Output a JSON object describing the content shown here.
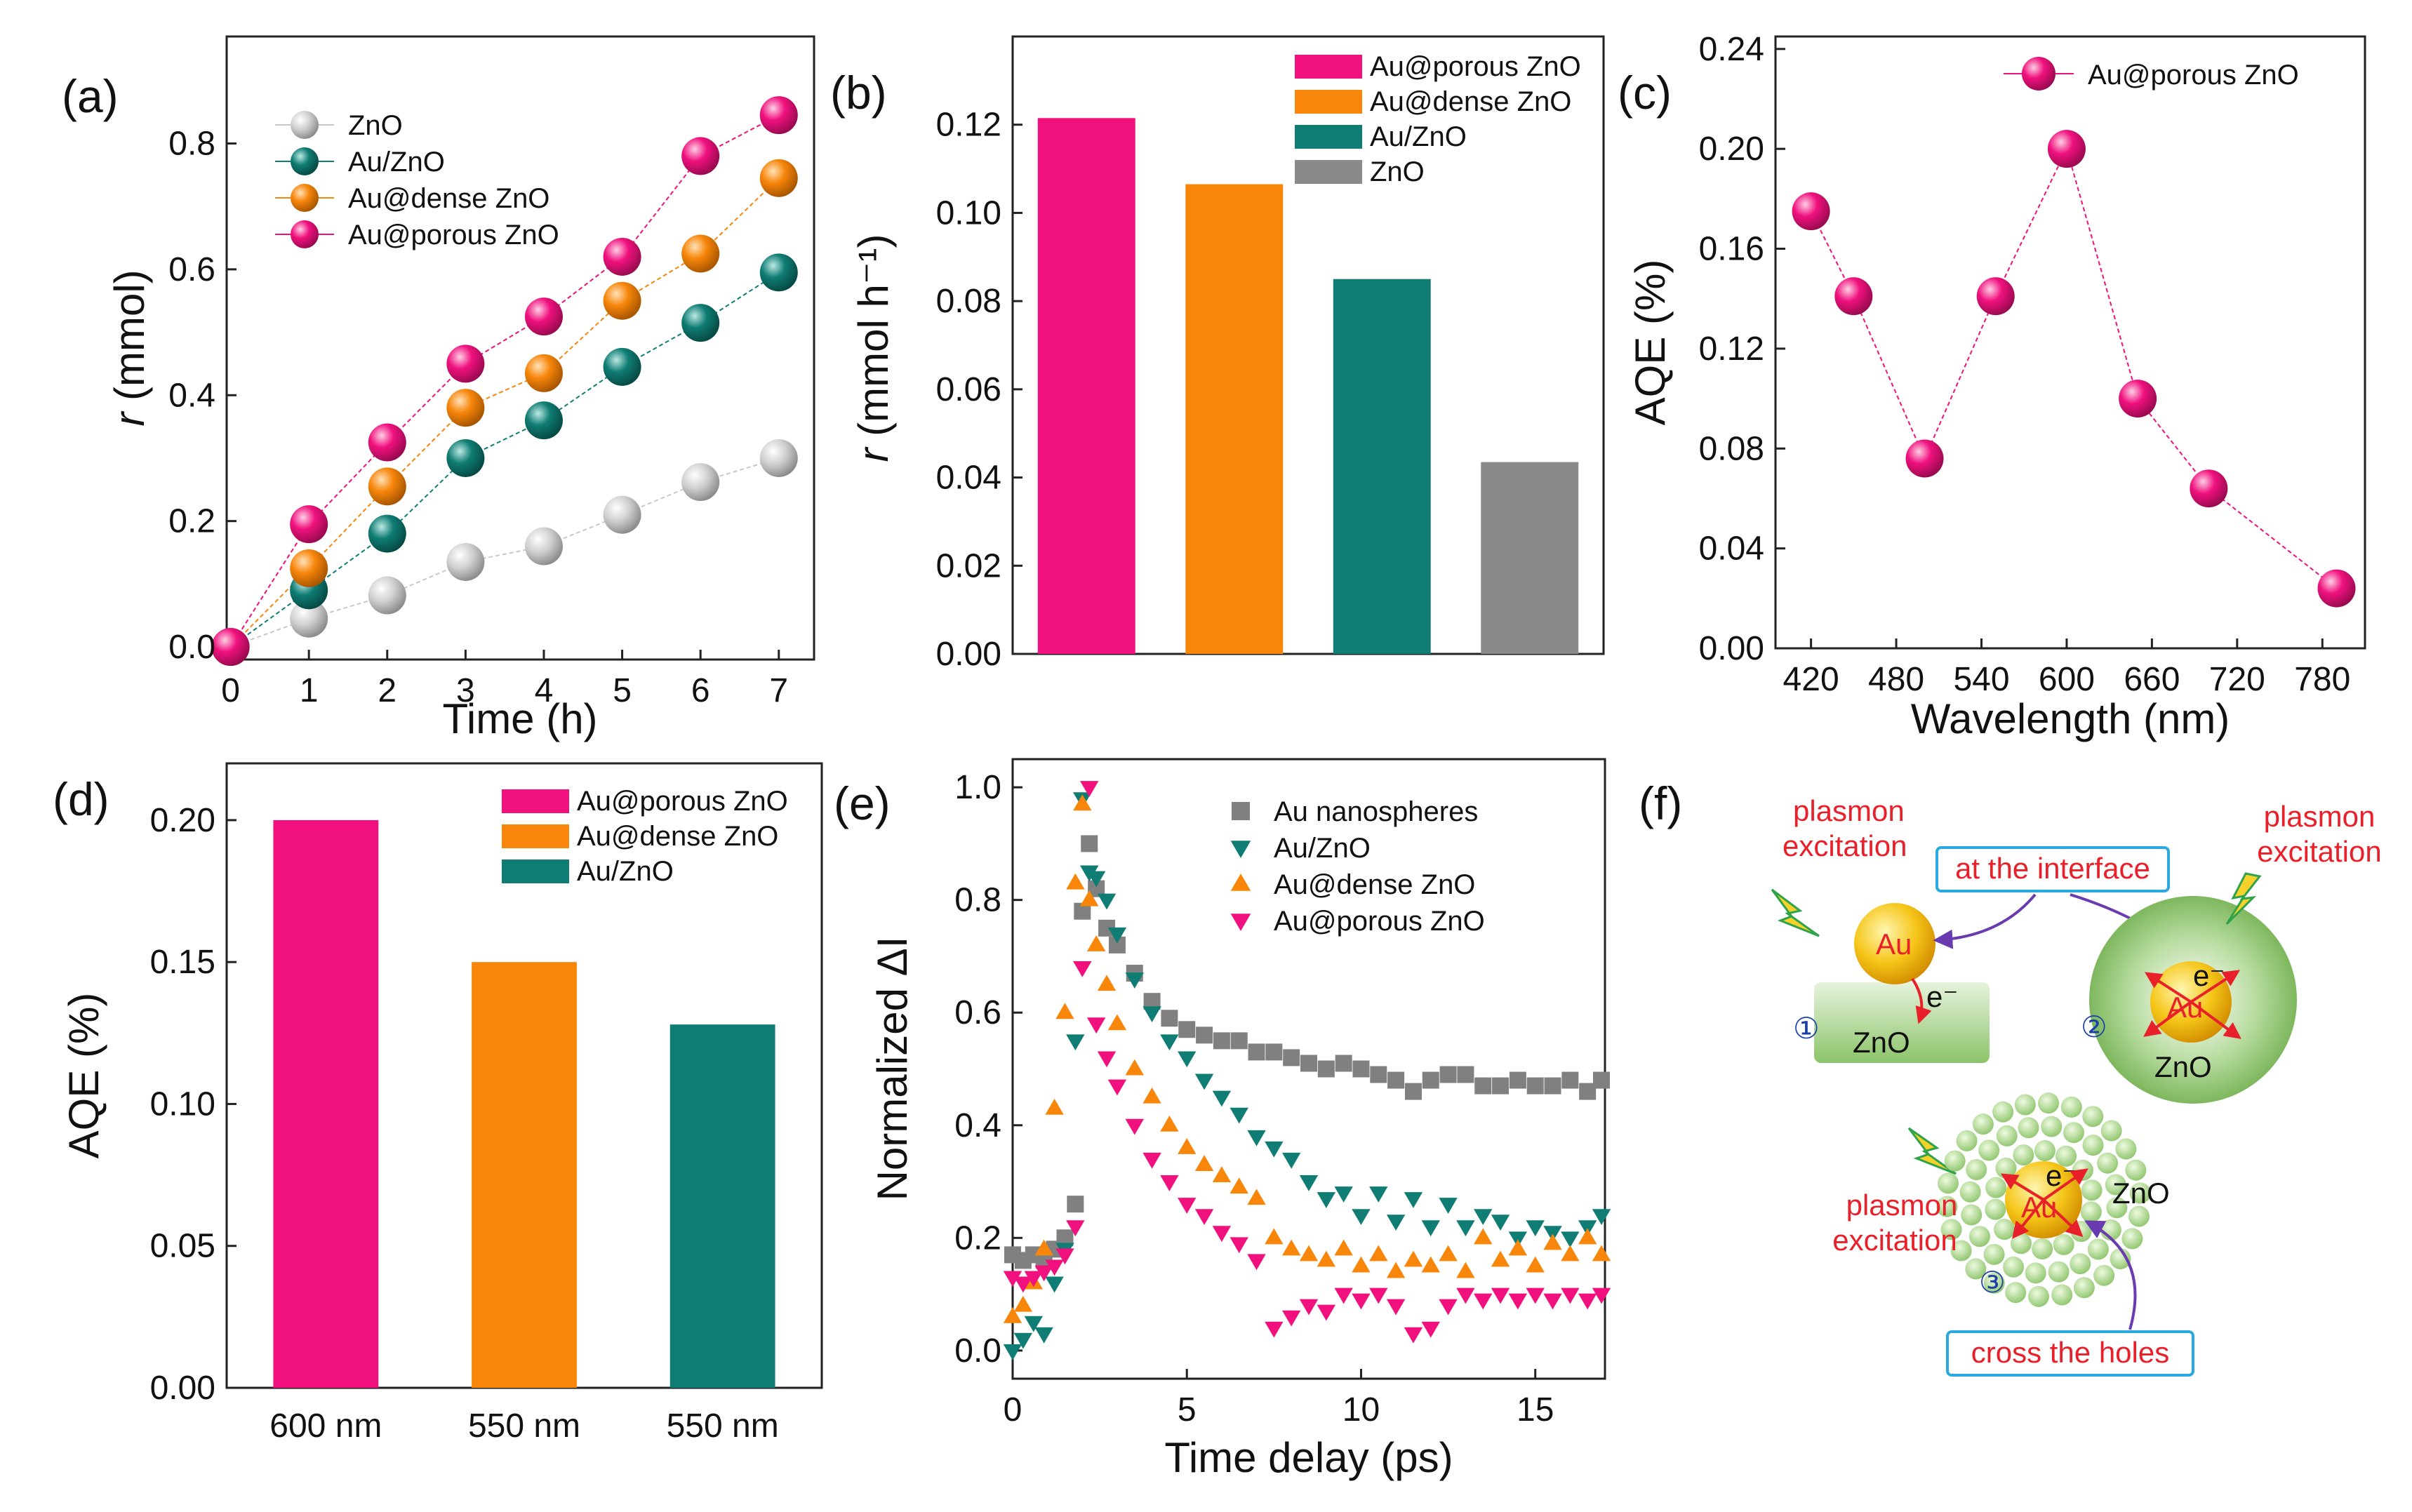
{
  "panels": {
    "a": {
      "label": "(a)"
    },
    "b": {
      "label": "(b)"
    },
    "c": {
      "label": "(c)"
    },
    "d": {
      "label": "(d)"
    },
    "e": {
      "label": "(e)"
    },
    "f": {
      "label": "(f)"
    }
  },
  "colors": {
    "pink": "#f0117e",
    "orange": "#f7860b",
    "teal": "#0f7d74",
    "gray": "#8a8a8a",
    "lightgray": "#c8c8c8"
  },
  "schematic": {
    "plasmon_excitation": "plasmon excitation",
    "plasmon": "plasmon",
    "excitation": "excitation",
    "at_interface": "at the interface",
    "cross_holes": "cross the holes",
    "au": "Au",
    "zno": "ZnO",
    "electron": "e⁻",
    "n1": "①",
    "n2": "②",
    "n3": "③"
  },
  "chart_data": [
    {
      "id": "a",
      "type": "scatter",
      "xlabel": "Time (h)",
      "ylabel": "r (mmol)",
      "ylabel_italic": "r",
      "ylabel_rest": " (mmol)",
      "xlim": [
        -0.05,
        7.45
      ],
      "ylim": [
        -0.02,
        0.97
      ],
      "xticks": [
        "0",
        "1",
        "2",
        "3",
        "4",
        "5",
        "6",
        "7"
      ],
      "yticks": [
        "0.0",
        "0.2",
        "0.4",
        "0.6",
        "0.8"
      ],
      "x": [
        0,
        1,
        2,
        3,
        4,
        5,
        6,
        7
      ],
      "series": [
        {
          "name": "ZnO",
          "color": "#c8c8c8",
          "values": [
            0.0,
            0.045,
            0.082,
            0.135,
            0.16,
            0.21,
            0.262,
            0.3
          ]
        },
        {
          "name": "Au/ZnO",
          "color": "#0f7d74",
          "values": [
            0.0,
            0.09,
            0.18,
            0.3,
            0.36,
            0.445,
            0.515,
            0.595
          ]
        },
        {
          "name": "Au@dense ZnO",
          "color": "#f7860b",
          "values": [
            0.0,
            0.125,
            0.255,
            0.38,
            0.435,
            0.55,
            0.625,
            0.745
          ]
        },
        {
          "name": "Au@porous ZnO",
          "color": "#f0117e",
          "values": [
            0.0,
            0.195,
            0.325,
            0.45,
            0.525,
            0.62,
            0.78,
            0.845
          ]
        }
      ]
    },
    {
      "id": "b",
      "type": "bar",
      "xlabel": "",
      "ylabel": "r (mmol h⁻¹)",
      "ylabel_italic": "r",
      "ylabel_rest": " (mmol h⁻¹)",
      "ylim": [
        0,
        0.14
      ],
      "yticks": [
        "0.00",
        "0.02",
        "0.04",
        "0.06",
        "0.08",
        "0.10",
        "0.12"
      ],
      "categories": [
        "Au@porous ZnO",
        "Au@dense ZnO",
        "Au/ZnO",
        "ZnO"
      ],
      "colors": [
        "#f0117e",
        "#f7860b",
        "#0f7d74",
        "#8a8a8a"
      ],
      "values": [
        0.1215,
        0.1065,
        0.085,
        0.0435
      ]
    },
    {
      "id": "c",
      "type": "line",
      "xlabel": "Wavelength (nm)",
      "ylabel": "AQE (%)",
      "xlim": [
        395,
        810
      ],
      "ylim": [
        0,
        0.245
      ],
      "xticks": [
        "420",
        "480",
        "540",
        "600",
        "660",
        "720",
        "780"
      ],
      "yticks": [
        "0.00",
        "0.04",
        "0.08",
        "0.12",
        "0.16",
        "0.20",
        "0.24"
      ],
      "series": [
        {
          "name": "Au@porous ZnO",
          "color": "#f0117e",
          "x": [
            420,
            450,
            500,
            550,
            600,
            650,
            700,
            790
          ],
          "values": [
            0.175,
            0.141,
            0.076,
            0.141,
            0.2,
            0.1,
            0.064,
            0.024
          ]
        }
      ]
    },
    {
      "id": "d",
      "type": "bar",
      "xlabel": "",
      "ylabel": "AQE (%)",
      "ylim": [
        0,
        0.22
      ],
      "yticks": [
        "0.00",
        "0.05",
        "0.10",
        "0.15",
        "0.20"
      ],
      "categories": [
        "600 nm",
        "550 nm",
        "550 nm"
      ],
      "legend": [
        "Au@porous ZnO",
        "Au@dense ZnO",
        "Au/ZnO"
      ],
      "colors": [
        "#f0117e",
        "#f7860b",
        "#0f7d74"
      ],
      "values": [
        0.2,
        0.15,
        0.128
      ]
    },
    {
      "id": "e",
      "type": "scatter",
      "xlabel": "Time delay (ps)",
      "ylabel": "Normalized ΔI",
      "xlim": [
        0,
        17
      ],
      "ylim": [
        -0.05,
        1.05
      ],
      "xticks": [
        "0",
        "5",
        "10",
        "15"
      ],
      "yticks": [
        "0.0",
        "0.2",
        "0.4",
        "0.6",
        "0.8",
        "1.0"
      ],
      "series": [
        {
          "name": "Au nanospheres",
          "color": "#808080",
          "marker": "square",
          "x": [
            0.0,
            0.3,
            0.6,
            0.9,
            1.2,
            1.5,
            1.8,
            2.0,
            2.2,
            2.4,
            2.7,
            3.0,
            3.5,
            4.0,
            4.5,
            5.0,
            5.5,
            6.0,
            6.5,
            7.0,
            7.5,
            8.0,
            8.5,
            9.0,
            9.5,
            10.0,
            10.5,
            11.0,
            11.5,
            12.0,
            12.5,
            13.0,
            13.5,
            14.0,
            14.5,
            15.0,
            15.5,
            16.0,
            16.5,
            16.9
          ],
          "values": [
            0.17,
            0.16,
            0.17,
            0.16,
            0.18,
            0.2,
            0.26,
            0.78,
            0.9,
            0.82,
            0.75,
            0.72,
            0.67,
            0.62,
            0.59,
            0.57,
            0.56,
            0.55,
            0.55,
            0.53,
            0.53,
            0.52,
            0.51,
            0.5,
            0.51,
            0.5,
            0.49,
            0.48,
            0.46,
            0.48,
            0.49,
            0.49,
            0.47,
            0.47,
            0.48,
            0.47,
            0.47,
            0.48,
            0.46,
            0.48
          ]
        },
        {
          "name": "Au/ZnO",
          "color": "#0f7d74",
          "marker": "triangle-down",
          "x": [
            0.0,
            0.3,
            0.6,
            0.9,
            1.2,
            1.5,
            1.8,
            2.0,
            2.2,
            2.4,
            2.7,
            3.0,
            3.5,
            4.0,
            4.5,
            5.0,
            5.5,
            6.0,
            6.5,
            7.0,
            7.5,
            8.0,
            8.5,
            9.0,
            9.5,
            10.0,
            10.5,
            11.0,
            11.5,
            12.0,
            12.5,
            13.0,
            13.5,
            14.0,
            14.5,
            15.0,
            15.5,
            16.0,
            16.5,
            16.9
          ],
          "values": [
            0.0,
            0.02,
            0.05,
            0.03,
            0.12,
            0.18,
            0.55,
            0.98,
            0.85,
            0.84,
            0.8,
            0.74,
            0.66,
            0.6,
            0.55,
            0.52,
            0.48,
            0.45,
            0.42,
            0.38,
            0.36,
            0.34,
            0.3,
            0.27,
            0.28,
            0.24,
            0.28,
            0.23,
            0.27,
            0.22,
            0.26,
            0.22,
            0.24,
            0.23,
            0.2,
            0.22,
            0.21,
            0.2,
            0.22,
            0.24
          ]
        },
        {
          "name": "Au@dense ZnO",
          "color": "#f7860b",
          "marker": "triangle-up",
          "x": [
            0.0,
            0.3,
            0.6,
            0.9,
            1.2,
            1.5,
            1.8,
            2.0,
            2.2,
            2.4,
            2.7,
            3.0,
            3.5,
            4.0,
            4.5,
            5.0,
            5.5,
            6.0,
            6.5,
            7.0,
            7.5,
            8.0,
            8.5,
            9.0,
            9.5,
            10.0,
            10.5,
            11.0,
            11.5,
            12.0,
            12.5,
            13.0,
            13.5,
            14.0,
            14.5,
            15.0,
            15.5,
            16.0,
            16.5,
            16.9
          ],
          "values": [
            0.06,
            0.08,
            0.12,
            0.18,
            0.43,
            0.6,
            0.83,
            0.97,
            0.8,
            0.72,
            0.65,
            0.58,
            0.5,
            0.45,
            0.4,
            0.36,
            0.33,
            0.31,
            0.29,
            0.27,
            0.2,
            0.18,
            0.17,
            0.16,
            0.18,
            0.15,
            0.17,
            0.14,
            0.16,
            0.15,
            0.17,
            0.14,
            0.2,
            0.16,
            0.18,
            0.15,
            0.19,
            0.17,
            0.2,
            0.17
          ]
        },
        {
          "name": "Au@porous ZnO",
          "color": "#f0117e",
          "marker": "triangle-down",
          "x": [
            0.0,
            0.3,
            0.6,
            0.9,
            1.2,
            1.5,
            1.8,
            2.0,
            2.2,
            2.4,
            2.7,
            3.0,
            3.5,
            4.0,
            4.5,
            5.0,
            5.5,
            6.0,
            6.5,
            7.0,
            7.5,
            8.0,
            8.5,
            9.0,
            9.5,
            10.0,
            10.5,
            11.0,
            11.5,
            12.0,
            12.5,
            13.0,
            13.5,
            14.0,
            14.5,
            15.0,
            15.5,
            16.0,
            16.5,
            16.9
          ],
          "values": [
            0.13,
            0.12,
            0.13,
            0.14,
            0.15,
            0.17,
            0.22,
            0.68,
            1.0,
            0.58,
            0.52,
            0.47,
            0.4,
            0.34,
            0.3,
            0.26,
            0.24,
            0.21,
            0.19,
            0.16,
            0.04,
            0.06,
            0.08,
            0.07,
            0.1,
            0.09,
            0.1,
            0.08,
            0.03,
            0.04,
            0.08,
            0.1,
            0.09,
            0.1,
            0.09,
            0.1,
            0.09,
            0.1,
            0.09,
            0.1
          ]
        }
      ]
    }
  ]
}
